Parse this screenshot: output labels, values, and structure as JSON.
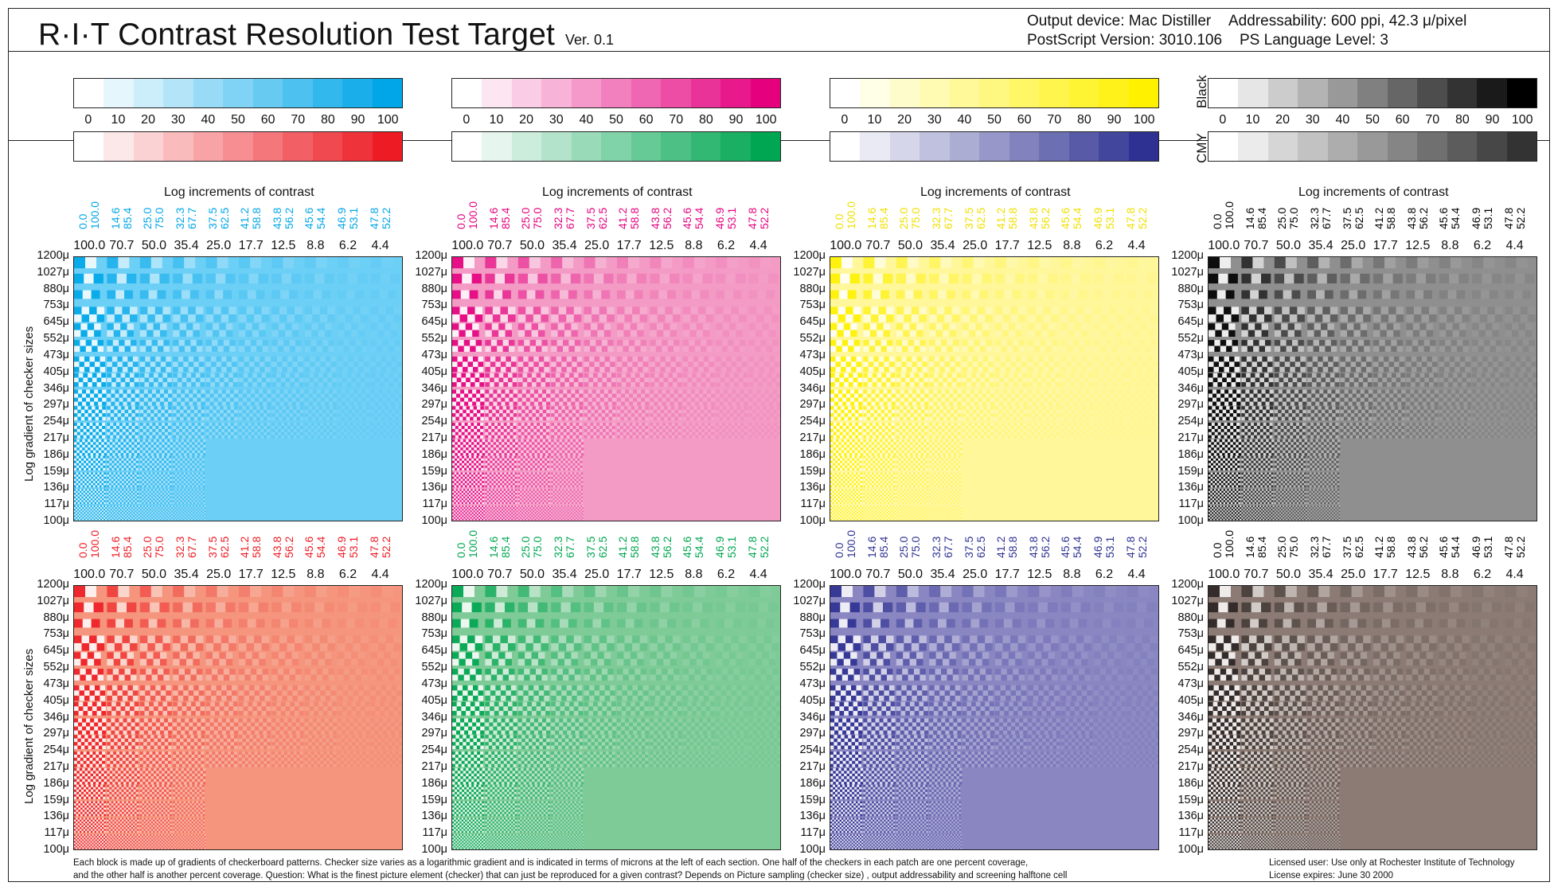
{
  "header": {
    "title": "R·I·T  Contrast Resolution Test Target",
    "version": "Ver. 0.1",
    "output_device": "Output device: Mac Distiller",
    "addressability": "Addressability: 600 ppi, 42.3 μ/pixel",
    "ps_version": "PostScript Version: 3010.106",
    "ps_level": "PS Language Level: 3"
  },
  "scales": {
    "ticks": [
      "0",
      "10",
      "20",
      "30",
      "40",
      "50",
      "60",
      "70",
      "80",
      "90",
      "100"
    ],
    "black_label": "Black",
    "cmy_label": "CMY",
    "top_row": [
      {
        "name": "cyan",
        "end": "#00a6e8"
      },
      {
        "name": "magenta",
        "end": "#e5007e"
      },
      {
        "name": "yellow",
        "end": "#fff100"
      },
      {
        "name": "black",
        "end": "#000000"
      }
    ],
    "bottom_row": [
      {
        "name": "red",
        "end": "#ed1c24"
      },
      {
        "name": "green",
        "end": "#00a651"
      },
      {
        "name": "blue",
        "end": "#2e3192"
      },
      {
        "name": "cmy",
        "end": "#333333"
      }
    ]
  },
  "panels": {
    "head": "Log increments of contrast",
    "ylabel": "Log gradient of checker sizes",
    "contrast_pairs": [
      [
        "0.0",
        "100.0"
      ],
      [
        "14.6",
        "85.4"
      ],
      [
        "25.0",
        "75.0"
      ],
      [
        "32.3",
        "67.7"
      ],
      [
        "37.5",
        "62.5"
      ],
      [
        "41.2",
        "58.8"
      ],
      [
        "43.8",
        "56.2"
      ],
      [
        "45.6",
        "54.4"
      ],
      [
        "46.9",
        "53.1"
      ],
      [
        "47.8",
        "52.2"
      ]
    ],
    "contrast_values": [
      "100.0",
      "70.7",
      "50.0",
      "35.4",
      "25.0",
      "17.7",
      "12.5",
      "8.8",
      "6.2",
      "4.4"
    ],
    "sizes": [
      "1200μ",
      "1027μ",
      "880μ",
      "753μ",
      "645μ",
      "552μ",
      "473μ",
      "405μ",
      "346μ",
      "297μ",
      "254μ",
      "217μ",
      "186μ",
      "159μ",
      "136μ",
      "117μ",
      "100μ"
    ],
    "colors": {
      "top": [
        {
          "ink": "#00a6e8",
          "fill": "#6ccff6",
          "label": "#00a6e8"
        },
        {
          "ink": "#e5007e",
          "fill": "#f39ac5",
          "label": "#e5007e"
        },
        {
          "ink": "#fff100",
          "fill": "#fff79a",
          "label": "#f0e000"
        },
        {
          "ink": "#000000",
          "fill": "#8f8f8f",
          "label": "#000000"
        }
      ],
      "bottom": [
        {
          "ink": "#ed1c24",
          "fill": "#f5957d",
          "label": "#ed1c24"
        },
        {
          "ink": "#00a651",
          "fill": "#7fcb98",
          "label": "#00a651"
        },
        {
          "ink": "#2e3192",
          "fill": "#8a86c2",
          "label": "#2e3192"
        },
        {
          "ink": "#2a2422",
          "fill": "#8c7b74",
          "label": "#000000"
        }
      ]
    }
  },
  "footer": {
    "line1": "Each block is made up of gradients of checkerboard patterns. Checker size varies as a logarithmic gradient and is indicated in terms of microns at the left of each section. One half of the checkers in each patch are one percent coverage,",
    "line2": "and the other half is another percent coverage. Question: What is the finest picture element (checker) that can just be   reproduced for a given contrast? Depends on Picture sampling (checker size) , output addressability and screening halftone cell",
    "license1": "Licensed user: Use only at Rochester Institute of Technology",
    "license2": "License expires: June 30 2000"
  }
}
